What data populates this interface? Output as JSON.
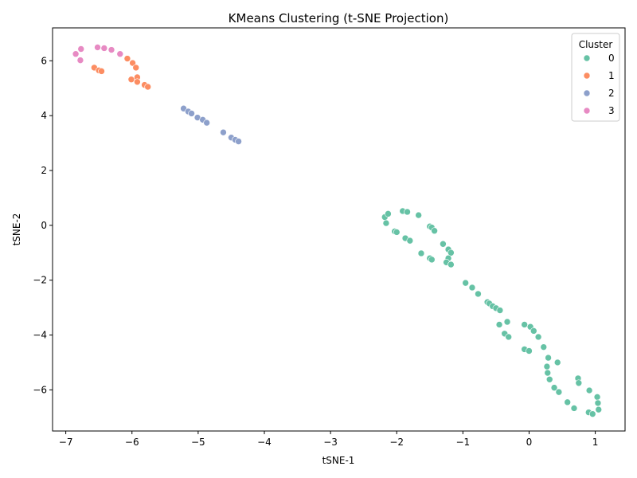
{
  "chart_data": {
    "type": "scatter",
    "title": "KMeans Clustering (t-SNE Projection)",
    "xlabel": "tSNE-1",
    "ylabel": "tSNE-2",
    "xlim": [
      -7.2,
      1.45
    ],
    "ylim": [
      -7.5,
      7.2
    ],
    "xticks": [
      -7,
      -6,
      -5,
      -4,
      -3,
      -2,
      -1,
      0,
      1
    ],
    "yticks": [
      -6,
      -4,
      -2,
      0,
      2,
      4,
      6
    ],
    "x_tick_labels": [
      "−7",
      "−6",
      "−5",
      "−4",
      "−3",
      "−2",
      "−1",
      "0",
      "1"
    ],
    "y_tick_labels": [
      "−6",
      "−4",
      "−2",
      "0",
      "2",
      "4",
      "6"
    ],
    "grid": false,
    "legend": {
      "title": "Cluster",
      "placement": "top-right"
    },
    "series": [
      {
        "name": "0",
        "color": "#66c2a5",
        "points": [
          [
            -2.18,
            0.3
          ],
          [
            -2.13,
            0.42
          ],
          [
            -2.16,
            0.08
          ],
          [
            -1.91,
            0.52
          ],
          [
            -1.84,
            0.49
          ],
          [
            -1.67,
            0.37
          ],
          [
            -2.03,
            -0.22
          ],
          [
            -2.0,
            -0.25
          ],
          [
            -1.87,
            -0.47
          ],
          [
            -1.8,
            -0.56
          ],
          [
            -1.5,
            -0.04
          ],
          [
            -1.47,
            -0.08
          ],
          [
            -1.43,
            -0.2
          ],
          [
            -1.3,
            -0.68
          ],
          [
            -1.22,
            -0.88
          ],
          [
            -1.18,
            -1.0
          ],
          [
            -1.22,
            -1.2
          ],
          [
            -1.25,
            -1.35
          ],
          [
            -1.18,
            -1.43
          ],
          [
            -1.63,
            -1.02
          ],
          [
            -1.5,
            -1.2
          ],
          [
            -1.47,
            -1.25
          ],
          [
            -0.96,
            -2.1
          ],
          [
            -0.86,
            -2.27
          ],
          [
            -0.77,
            -2.5
          ],
          [
            -0.63,
            -2.8
          ],
          [
            -0.6,
            -2.85
          ],
          [
            -0.55,
            -2.95
          ],
          [
            -0.5,
            -3.02
          ],
          [
            -0.44,
            -3.1
          ],
          [
            -0.33,
            -3.52
          ],
          [
            -0.45,
            -3.62
          ],
          [
            -0.37,
            -3.95
          ],
          [
            -0.31,
            -4.07
          ],
          [
            -0.07,
            -3.62
          ],
          [
            0.02,
            -3.7
          ],
          [
            0.07,
            -3.85
          ],
          [
            0.14,
            -4.07
          ],
          [
            0.22,
            -4.44
          ],
          [
            -0.07,
            -4.52
          ],
          [
            0.0,
            -4.58
          ],
          [
            0.29,
            -4.83
          ],
          [
            0.43,
            -5.0
          ],
          [
            0.27,
            -5.15
          ],
          [
            0.28,
            -5.38
          ],
          [
            0.31,
            -5.62
          ],
          [
            0.38,
            -5.92
          ],
          [
            0.45,
            -6.08
          ],
          [
            0.58,
            -6.45
          ],
          [
            0.68,
            -6.67
          ],
          [
            0.74,
            -5.58
          ],
          [
            0.75,
            -5.75
          ],
          [
            0.91,
            -6.02
          ],
          [
            1.03,
            -6.26
          ],
          [
            1.04,
            -6.48
          ],
          [
            1.05,
            -6.72
          ],
          [
            0.9,
            -6.82
          ],
          [
            0.96,
            -6.88
          ]
        ]
      },
      {
        "name": "1",
        "color": "#fc8d62",
        "points": [
          [
            -6.57,
            5.75
          ],
          [
            -6.5,
            5.65
          ],
          [
            -6.46,
            5.62
          ],
          [
            -6.07,
            6.08
          ],
          [
            -5.99,
            5.92
          ],
          [
            -5.94,
            5.75
          ],
          [
            -5.92,
            5.4
          ],
          [
            -6.01,
            5.32
          ],
          [
            -5.92,
            5.23
          ],
          [
            -5.81,
            5.12
          ],
          [
            -5.76,
            5.05
          ]
        ]
      },
      {
        "name": "2",
        "color": "#8da0cb",
        "points": [
          [
            -5.22,
            4.26
          ],
          [
            -5.15,
            4.15
          ],
          [
            -5.1,
            4.08
          ],
          [
            -5.01,
            3.93
          ],
          [
            -4.93,
            3.85
          ],
          [
            -4.87,
            3.74
          ],
          [
            -4.62,
            3.39
          ],
          [
            -4.5,
            3.2
          ],
          [
            -4.44,
            3.12
          ],
          [
            -4.39,
            3.06
          ]
        ]
      },
      {
        "name": "3",
        "color": "#e78ac3",
        "points": [
          [
            -6.85,
            6.25
          ],
          [
            -6.77,
            6.43
          ],
          [
            -6.78,
            6.02
          ],
          [
            -6.52,
            6.49
          ],
          [
            -6.42,
            6.46
          ],
          [
            -6.31,
            6.4
          ],
          [
            -6.18,
            6.25
          ]
        ]
      }
    ]
  }
}
